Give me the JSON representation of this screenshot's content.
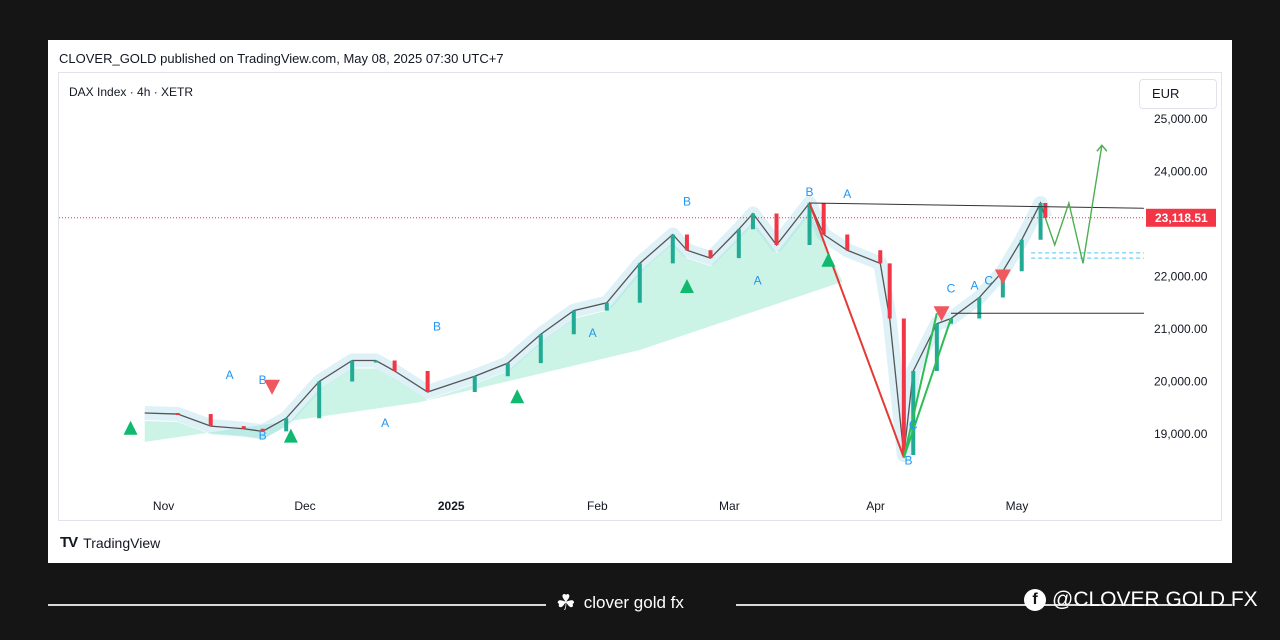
{
  "published": "CLOVER_GOLD published on TradingView.com, May 08, 2025 07:30 UTC+7",
  "symbol": "DAX Index · 4h · XETR",
  "currency": "EUR",
  "tradingview_label": "TradingView",
  "brand": "clover gold fx",
  "social": "@CLOVER GOLD FX",
  "colors": {
    "up": "#22ab94",
    "down": "#f23645",
    "wave_up": "#2ebd55",
    "wave_down": "#e53935",
    "forecast": "#4caf50",
    "label": "#2196f3",
    "price_tag": "#f23645",
    "cloud": "#a8ecd6"
  },
  "chart_data": {
    "type": "line",
    "title": "DAX Index · 4h · XETR",
    "ylabel": "EUR",
    "ylim": [
      18000,
      25500
    ],
    "x_ticks": [
      "Nov",
      "Dec",
      "2025",
      "Feb",
      "Mar",
      "Apr",
      "May"
    ],
    "y_ticks": [
      "25,000.00",
      "24,000.00",
      "22,000.00",
      "21,000.00",
      "20,000.00",
      "19,000.00"
    ],
    "last_price_label": "23,118.51",
    "last_price": 23118.51,
    "series": [
      {
        "x": [
          "2024-10-28",
          "2024-11-04",
          "2024-11-11",
          "2024-11-18",
          "2024-11-22",
          "2024-11-27",
          "2024-12-04",
          "2024-12-11",
          "2024-12-16",
          "2024-12-20",
          "2024-12-27",
          "2025-01-06",
          "2025-01-13",
          "2025-01-20",
          "2025-01-27",
          "2025-02-03",
          "2025-02-10",
          "2025-02-17",
          "2025-02-20",
          "2025-02-25",
          "2025-03-03",
          "2025-03-06",
          "2025-03-11",
          "2025-03-18",
          "2025-03-21",
          "2025-03-26",
          "2025-04-02",
          "2025-04-04",
          "2025-04-07",
          "2025-04-09",
          "2025-04-14",
          "2025-04-17",
          "2025-04-23",
          "2025-04-28",
          "2025-05-02",
          "2025-05-06",
          "2025-05-07"
        ],
        "values": [
          19400,
          19380,
          19150,
          19100,
          19050,
          19300,
          20000,
          20400,
          20400,
          20200,
          19800,
          20100,
          20350,
          20900,
          21350,
          21500,
          22250,
          22800,
          22500,
          22350,
          22900,
          23200,
          22600,
          23400,
          22800,
          22500,
          22250,
          21200,
          18600,
          20200,
          21100,
          21200,
          21600,
          22100,
          22700,
          23400,
          23118.51
        ]
      }
    ],
    "wave_labels": [
      "A",
      "B",
      "B",
      "A",
      "B",
      "A",
      "A",
      "B",
      "A",
      "B",
      "A",
      "C",
      "B",
      "C",
      "C"
    ],
    "forecast": [
      {
        "x": "2025-05-07",
        "value": 23118.51
      },
      {
        "x": "2025-05-09",
        "value": 22600
      },
      {
        "x": "2025-05-12",
        "value": 23400
      },
      {
        "x": "2025-05-15",
        "value": 22250
      },
      {
        "x": "2025-05-19",
        "value": 24500
      }
    ],
    "horizontal_levels": [
      23300,
      21300,
      22450,
      22350
    ]
  }
}
